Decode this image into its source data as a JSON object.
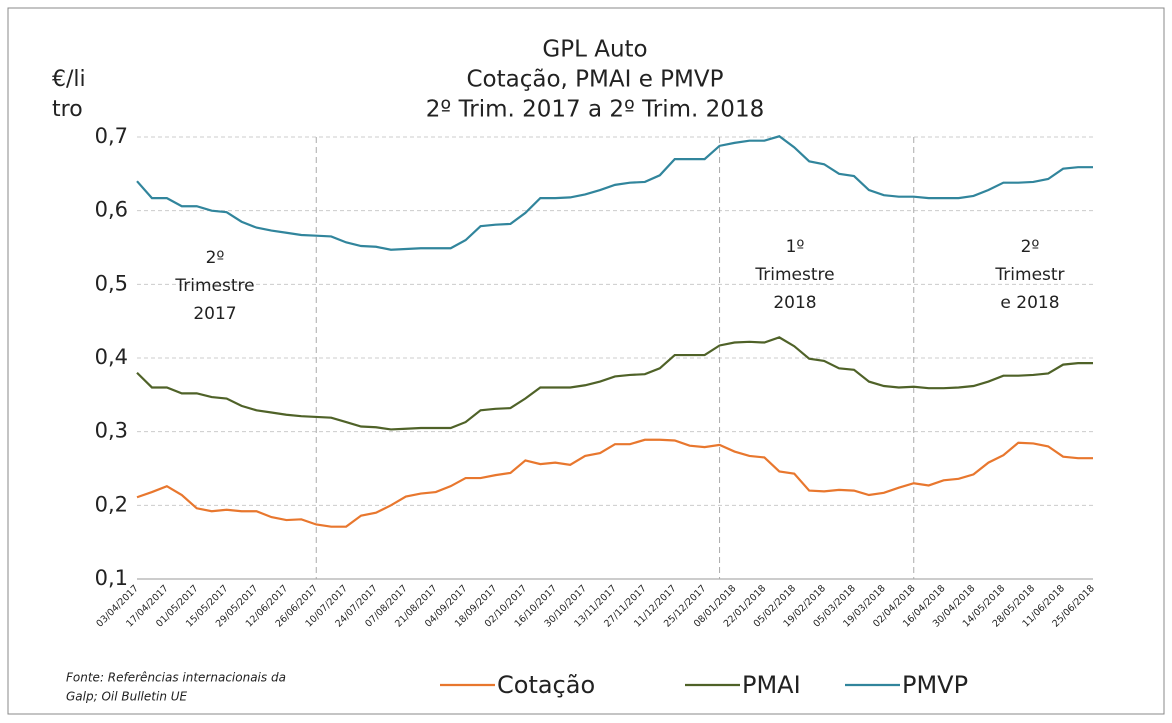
{
  "chart_data": {
    "type": "line",
    "title": [
      "GPL Auto",
      "Cotação, PMAI e PMVP",
      "2º Trim. 2017 a 2º Trim. 2018"
    ],
    "y_label": [
      "€/li",
      "tro"
    ],
    "source": [
      "Fonte: Referências internacionais da",
      "Galp; Oil Bulletin UE"
    ],
    "annotations": [
      [
        "2º",
        "Trimestre",
        "2017"
      ],
      [
        "1º",
        "Trimestre",
        "2018"
      ],
      [
        "2º",
        "Trimestr",
        "e 2018"
      ]
    ],
    "categories": [
      "03/04/2017",
      null,
      "17/04/2017",
      null,
      "01/05/2017",
      null,
      "15/05/2017",
      null,
      "29/05/2017",
      null,
      "12/06/2017",
      null,
      "26/06/2017",
      null,
      "10/07/2017",
      null,
      "24/07/2017",
      null,
      "07/08/2017",
      null,
      "21/08/2017",
      null,
      "04/09/2017",
      null,
      "18/09/2017",
      null,
      "02/10/2017",
      null,
      "16/10/2017",
      null,
      "30/10/2017",
      null,
      "13/11/2017",
      null,
      "27/11/2017",
      null,
      "11/12/2017",
      null,
      "25/12/2017",
      null,
      "08/01/2018",
      null,
      "22/01/2018",
      null,
      "05/02/2018",
      null,
      "19/02/2018",
      null,
      "05/03/2018",
      null,
      "19/03/2018",
      null,
      "02/04/2018",
      null,
      "16/04/2018",
      null,
      "30/04/2018",
      null,
      "14/05/2018",
      null,
      "28/05/2018",
      null,
      "11/06/2018",
      null,
      "25/06/2018"
    ],
    "series": [
      {
        "name": "Cotação",
        "color": "#e8772e",
        "values": [
          0.211,
          0.218,
          0.226,
          0.214,
          0.196,
          0.192,
          0.194,
          0.192,
          0.192,
          0.184,
          0.18,
          0.181,
          0.174,
          0.171,
          0.171,
          0.186,
          0.19,
          0.2,
          0.212,
          0.216,
          0.218,
          0.226,
          0.237,
          0.237,
          0.241,
          0.244,
          0.261,
          0.256,
          0.258,
          0.255,
          0.267,
          0.271,
          0.283,
          0.283,
          0.289,
          0.289,
          0.288,
          0.281,
          0.279,
          0.282,
          0.273,
          0.267,
          0.265,
          0.246,
          0.243,
          0.22,
          0.219,
          0.221,
          0.22,
          0.214,
          0.217,
          0.224,
          0.23,
          0.227,
          0.234,
          0.236,
          0.242,
          0.258,
          0.268,
          0.285,
          0.284,
          0.28,
          0.266,
          0.264,
          0.264
        ]
      },
      {
        "name": "PMAI",
        "color": "#4f6228",
        "values": [
          0.38,
          0.36,
          0.36,
          0.352,
          0.352,
          0.347,
          0.345,
          0.335,
          0.329,
          0.326,
          0.323,
          0.321,
          0.32,
          0.319,
          0.313,
          0.307,
          0.306,
          0.303,
          0.304,
          0.305,
          0.305,
          0.305,
          0.313,
          0.329,
          0.331,
          0.332,
          0.345,
          0.36,
          0.36,
          0.36,
          0.363,
          0.368,
          0.375,
          0.377,
          0.378,
          0.386,
          0.404,
          0.404,
          0.404,
          0.417,
          0.421,
          0.422,
          0.421,
          0.428,
          0.416,
          0.399,
          0.396,
          0.386,
          0.384,
          0.368,
          0.362,
          0.36,
          0.361,
          0.359,
          0.359,
          0.36,
          0.362,
          0.368,
          0.376,
          0.376,
          0.377,
          0.379,
          0.391,
          0.393,
          0.393
        ]
      },
      {
        "name": "PMVP",
        "color": "#31859c",
        "values": [
          0.64,
          0.617,
          0.617,
          0.606,
          0.606,
          0.6,
          0.598,
          0.585,
          0.577,
          0.573,
          0.57,
          0.567,
          0.566,
          0.565,
          0.557,
          0.552,
          0.551,
          0.547,
          0.548,
          0.549,
          0.549,
          0.549,
          0.56,
          0.579,
          0.581,
          0.582,
          0.597,
          0.617,
          0.617,
          0.618,
          0.622,
          0.628,
          0.635,
          0.638,
          0.639,
          0.648,
          0.67,
          0.67,
          0.67,
          0.688,
          0.692,
          0.695,
          0.695,
          0.701,
          0.686,
          0.667,
          0.663,
          0.65,
          0.647,
          0.628,
          0.621,
          0.619,
          0.619,
          0.617,
          0.617,
          0.617,
          0.62,
          0.628,
          0.638,
          0.638,
          0.639,
          0.643,
          0.657,
          0.659,
          0.659
        ]
      }
    ],
    "ylim": [
      0.1,
      0.7
    ],
    "yticks": [
      {
        "value": 0.1,
        "label": "0,1"
      },
      {
        "value": 0.2,
        "label": "0,2"
      },
      {
        "value": 0.3,
        "label": "0,3"
      },
      {
        "value": 0.4,
        "label": "0,4"
      },
      {
        "value": 0.5,
        "label": "0,5"
      },
      {
        "value": 0.6,
        "label": "0,6"
      },
      {
        "value": 0.7,
        "label": "0,7"
      }
    ],
    "grid": true
  }
}
